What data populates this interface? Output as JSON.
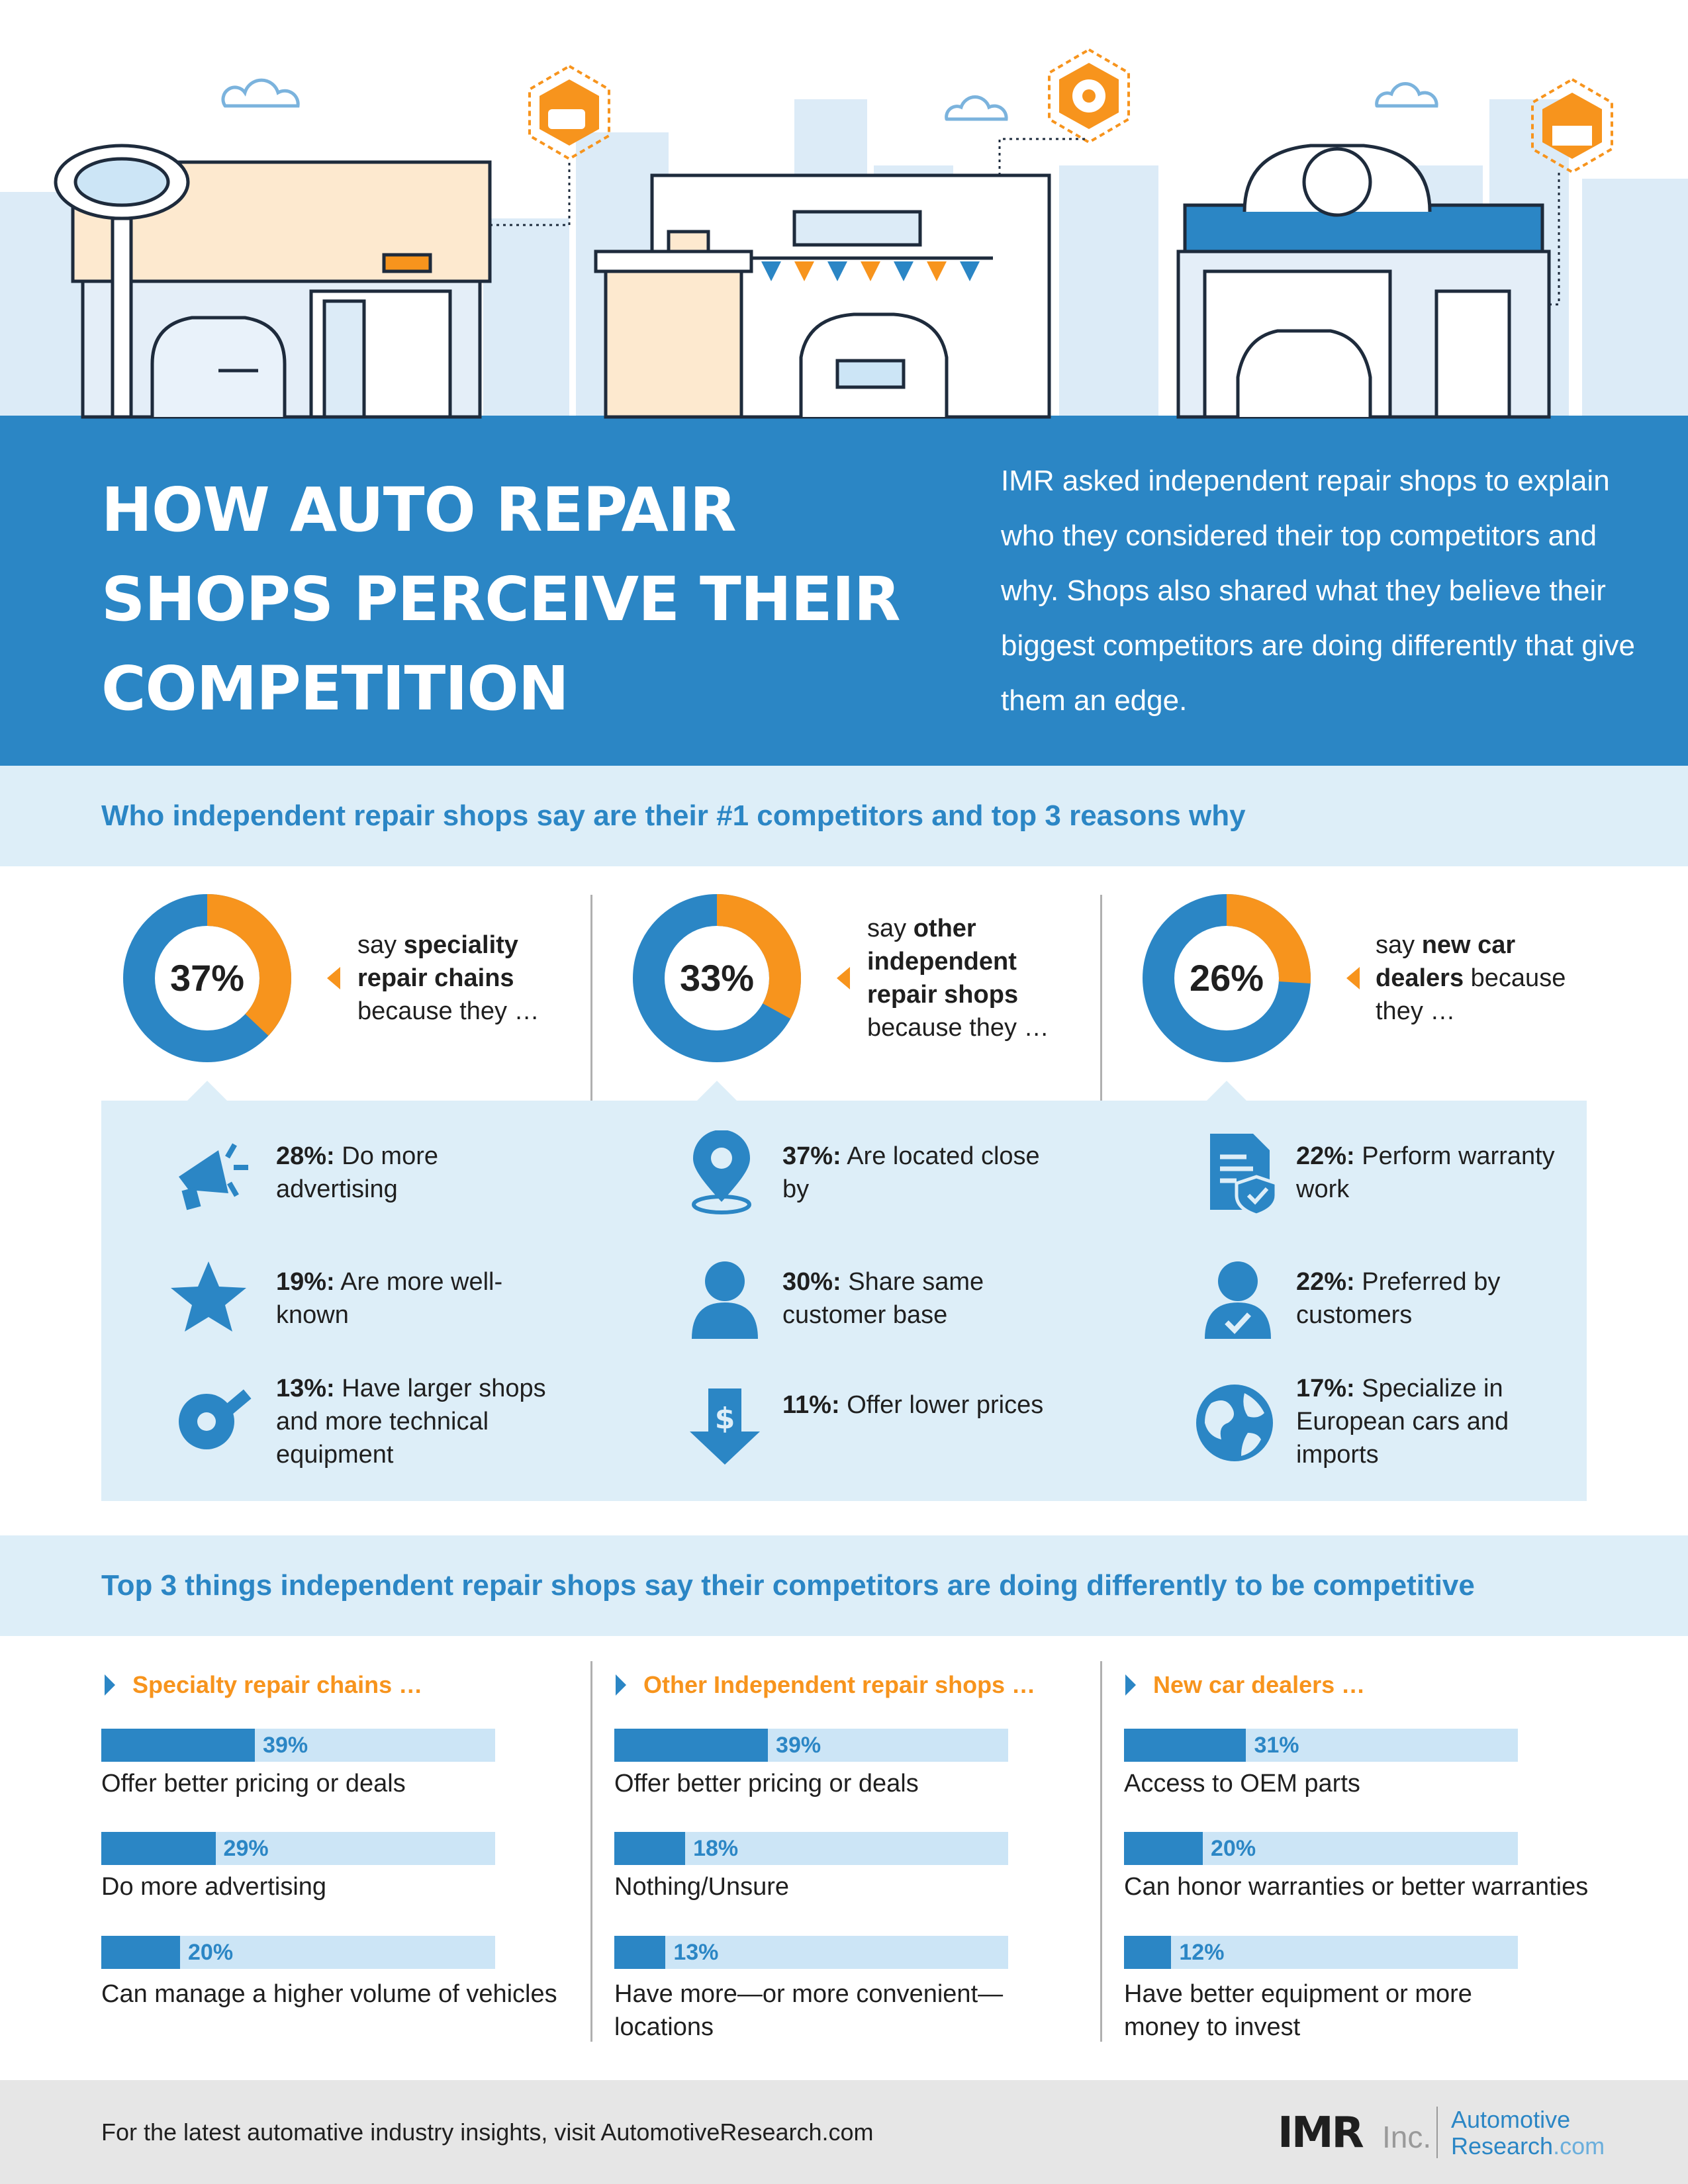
{
  "header": {
    "title": "How Auto Repair Shops Perceive Their Competition",
    "intro": "IMR asked independent repair shops to explain who they considered their top competitors and why. Shops also shared what they believe their biggest competitors are doing differently that give them an edge."
  },
  "section1": {
    "heading": "Who independent repair shops say are their #1 competitors and top 3 reasons why"
  },
  "competitors": [
    {
      "percent": 37,
      "percent_label": "37%",
      "say_prefix": "say",
      "say_bold": "speciality repair chains",
      "say_suffix": "because they …",
      "reasons": [
        {
          "icon": "megaphone-icon",
          "pct": "28%:",
          "text": "Do more advertising"
        },
        {
          "icon": "star-icon",
          "pct": "19%:",
          "text": "Are more well-known"
        },
        {
          "icon": "tape-measure-icon",
          "pct": "13%:",
          "text": "Have larger shops and more technical equipment"
        }
      ]
    },
    {
      "percent": 33,
      "percent_label": "33%",
      "say_prefix": "say",
      "say_bold": "other independent repair shops",
      "say_suffix": "because they …",
      "reasons": [
        {
          "icon": "location-pin-icon",
          "pct": "37%:",
          "text": "Are located close by"
        },
        {
          "icon": "person-icon",
          "pct": "30%:",
          "text": "Share same customer base"
        },
        {
          "icon": "dollar-down-arrow-icon",
          "pct": "11%:",
          "text": "Offer lower prices"
        }
      ]
    },
    {
      "percent": 26,
      "percent_label": "26%",
      "say_prefix": "say",
      "say_bold": "new car dealers",
      "say_suffix": "because they …",
      "reasons": [
        {
          "icon": "warranty-document-icon",
          "pct": "22%:",
          "text": "Perform warranty work"
        },
        {
          "icon": "person-check-icon",
          "pct": "22%:",
          "text": "Preferred by customers"
        },
        {
          "icon": "globe-icon",
          "pct": "17%:",
          "text": "Specialize in European cars and imports"
        }
      ]
    }
  ],
  "section2": {
    "heading": "Top 3 things independent repair shops say their competitors are doing differently to be competitive"
  },
  "bar_groups": [
    {
      "title": "Specialty repair chains …",
      "items": [
        {
          "value": 39,
          "value_label": "39%",
          "label": "Offer better pricing or deals"
        },
        {
          "value": 29,
          "value_label": "29%",
          "label": "Do more advertising"
        },
        {
          "value": 20,
          "value_label": "20%",
          "label": "Can manage a higher volume of vehicles"
        }
      ]
    },
    {
      "title": "Other Independent repair shops …",
      "items": [
        {
          "value": 39,
          "value_label": "39%",
          "label": "Offer better pricing or deals"
        },
        {
          "value": 18,
          "value_label": "18%",
          "label": "Nothing/Unsure"
        },
        {
          "value": 13,
          "value_label": "13%",
          "label": "Have more—or more convenient—locations"
        }
      ]
    },
    {
      "title": "New car dealers …",
      "items": [
        {
          "value": 31,
          "value_label": "31%",
          "label": "Access to OEM parts"
        },
        {
          "value": 20,
          "value_label": "20%",
          "label": "Can honor warranties or better warranties"
        },
        {
          "value": 12,
          "value_label": "12%",
          "label": "Have better equipment or more money to invest"
        }
      ]
    }
  ],
  "footer": {
    "text": "For the latest automative industry insights, visit AutomotiveResearch.com",
    "logo_imr": "IMR",
    "logo_inc": "Inc.",
    "logo_line1": "Automotive",
    "logo_line2_main": "Research",
    "logo_line2_dim": ".com"
  },
  "colors": {
    "blue": "#2b86c5",
    "light_blue": "#ddeef8",
    "orange": "#f7941d",
    "track": "#cce5f6"
  }
}
